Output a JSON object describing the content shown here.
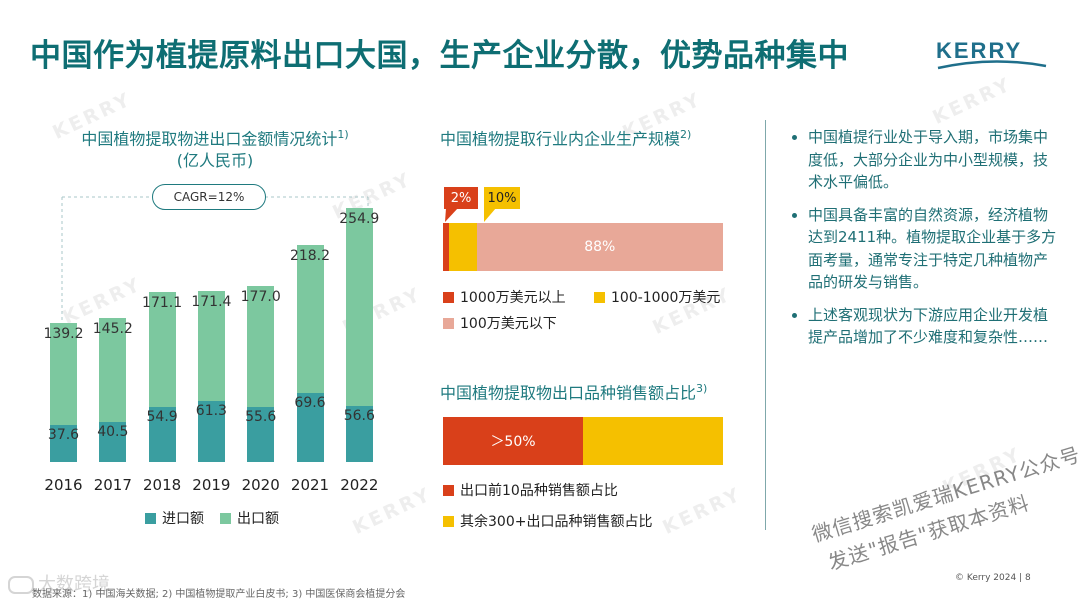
{
  "title": "中国作为植提原料出口大国，生产企业分散，优势品种集中",
  "brand": "KERRY",
  "watermark_text": "KERRY",
  "colors": {
    "title": "#0e6e73",
    "import": "#3a9ea0",
    "export": "#7cc89f",
    "red": "#d9401a",
    "yellow": "#f5c000",
    "pink": "#e8a898"
  },
  "chart_data": [
    {
      "type": "bar",
      "title": "中国植物提取物进出口金额情况统计",
      "title_sup": "1)",
      "subtitle": "(亿人民币)",
      "annotation": "CAGR=12%",
      "categories": [
        "2016",
        "2017",
        "2018",
        "2019",
        "2020",
        "2021",
        "2022"
      ],
      "series": [
        {
          "name": "进口额",
          "values": [
            37.6,
            40.5,
            54.9,
            61.3,
            55.6,
            69.6,
            56.6
          ]
        },
        {
          "name": "出口额",
          "values": [
            139.2,
            145.2,
            171.1,
            171.4,
            177.0,
            218.2,
            254.9
          ]
        }
      ],
      "value_labels": {
        "import": [
          "37.6",
          "40.5",
          "54.9",
          "61.3",
          "55.6",
          "69.6",
          "56.6"
        ],
        "export": [
          "139.2",
          "145.2",
          "171.1",
          "171.4",
          "177.0",
          "218.2",
          "254.9"
        ]
      },
      "stacked": false,
      "ylim": [
        0,
        260
      ]
    },
    {
      "type": "bar",
      "title": "中国植物提取行业内企业生产规模",
      "title_sup": "2)",
      "orientation": "horizontal-stacked-100",
      "segments": [
        {
          "name": "1000万美元以上",
          "value": 2,
          "label": "2%"
        },
        {
          "name": "100-1000万美元",
          "value": 10,
          "label": "10%"
        },
        {
          "name": "100万美元以下",
          "value": 88,
          "label": "88%"
        }
      ]
    },
    {
      "type": "bar",
      "title": "中国植物提取物出口品种销售额占比",
      "title_sup": "3)",
      "orientation": "horizontal-stacked-100",
      "segments": [
        {
          "name": "出口前10品种销售额占比",
          "value": 50,
          "label": "＞50%"
        },
        {
          "name": "其余300+出口品种销售额占比",
          "value": 50,
          "label": ""
        }
      ]
    }
  ],
  "bullets": [
    "中国植提行业处于导入期，市场集中度低，大部分企业为中小型规模，技术水平偏低。",
    "中国具备丰富的自然资源，经济植物达到2411种。植物提取企业基于多方面考量，通常专注于特定几种植物产品的研发与销售。",
    "上述客观现状为下游应用企业开发植提产品增加了不少难度和复杂性……"
  ],
  "wechat_note_line1": "微信搜索凯爱瑞KERRY公众号",
  "wechat_note_line2": "发送\"报告\"获取本资料",
  "source": "数据来源：1) 中国海关数据; 2) 中国植物提取产业白皮书; 3) 中国医保商会植提分会",
  "copyright": "© Kerry 2024 | 8",
  "bottom_brand": "大数跨境"
}
